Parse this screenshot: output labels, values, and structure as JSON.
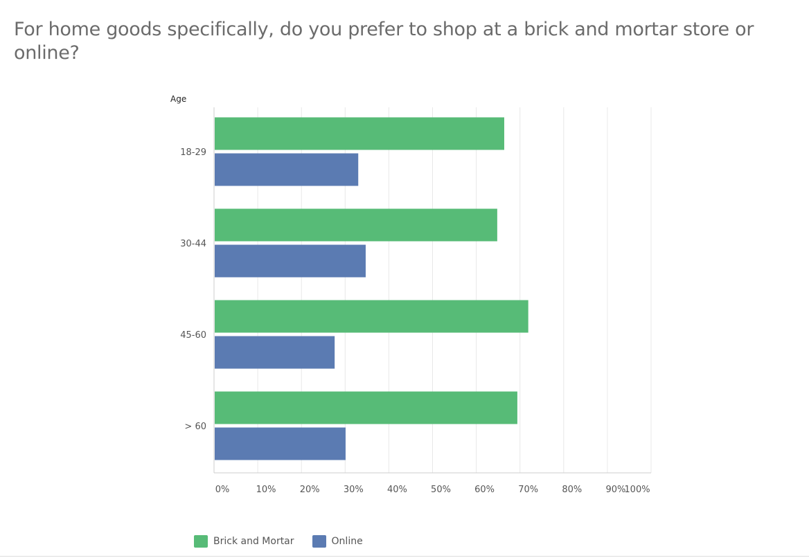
{
  "title": "For home goods specifically, do you prefer to shop at a brick and mortar store or online?",
  "chart_data": {
    "type": "bar",
    "orientation": "horizontal",
    "title": "For home goods specifically, do you prefer to shop at a brick and mortar store or online?",
    "ylabel": "Age",
    "xlabel": "",
    "categories": [
      "18-29",
      "30-44",
      "45-60",
      "> 60"
    ],
    "series": [
      {
        "name": "Brick and Mortar",
        "color": "#57bb77",
        "values": [
          66.4,
          64.8,
          71.9,
          69.4
        ]
      },
      {
        "name": "Online",
        "color": "#5b7bb2",
        "values": [
          33.0,
          34.7,
          27.6,
          30.1
        ]
      }
    ],
    "xlim": [
      0,
      100
    ],
    "xticks": [
      "0%",
      "10%",
      "20%",
      "30%",
      "40%",
      "50%",
      "60%",
      "70%",
      "80%",
      "90%",
      "100%"
    ],
    "grid": true,
    "legend": "bottom-left"
  }
}
